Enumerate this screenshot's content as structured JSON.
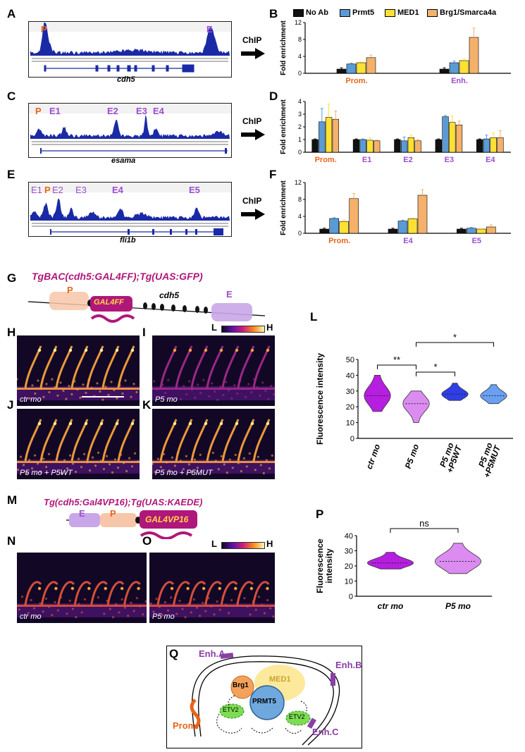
{
  "colors": {
    "no_ab": "#111111",
    "prmt5": "#5b9bd5",
    "med1": "#ffe135",
    "brg1": "#f4b16b",
    "prom_orange": "#e8641b",
    "enh_purple": "#9b4dd1",
    "magenta": "#b0177a",
    "track_blue": "#1a2aa6"
  },
  "panels": {
    "A": "A",
    "B": "B",
    "C": "C",
    "D": "D",
    "E": "E",
    "F": "F",
    "G": "G",
    "H": "H",
    "I": "I",
    "J": "J",
    "K": "K",
    "L": "L",
    "M": "M",
    "N": "N",
    "O": "O",
    "P": "P",
    "Q": "Q"
  },
  "tracks": {
    "A": {
      "gene": "cdh5",
      "labels": [
        {
          "t": "P",
          "kind": "prom"
        },
        {
          "t": "E",
          "kind": "enh"
        }
      ]
    },
    "C": {
      "gene": "esama",
      "labels": [
        {
          "t": "P",
          "kind": "prom"
        },
        {
          "t": "E1",
          "kind": "enh"
        },
        {
          "t": "E2",
          "kind": "enh"
        },
        {
          "t": "E3",
          "kind": "enh"
        },
        {
          "t": "E4",
          "kind": "enh"
        }
      ]
    },
    "E": {
      "gene": "fli1b",
      "labels": [
        {
          "t": "E1",
          "kind": "enh"
        },
        {
          "t": "P",
          "kind": "prom"
        },
        {
          "t": "E2",
          "kind": "enh"
        },
        {
          "t": "E3",
          "kind": "enh"
        },
        {
          "t": "E4",
          "kind": "enh"
        },
        {
          "t": "E5",
          "kind": "enh"
        }
      ]
    }
  },
  "chip_label": "ChIP",
  "legend": [
    "No Ab",
    "Prmt5",
    "MED1",
    "Brg1/Smarca4a"
  ],
  "chart_data": [
    {
      "panel": "B",
      "type": "bar",
      "ylabel": "Fold enrichment",
      "ylim": [
        0,
        12
      ],
      "yticks": [
        0,
        4,
        8,
        12
      ],
      "categories": [
        "Prom.",
        "Enh."
      ],
      "category_colors": [
        "prom",
        "enh"
      ],
      "series": [
        {
          "name": "No Ab",
          "values": [
            1.0,
            1.0
          ],
          "errors": [
            0.3,
            0.3
          ]
        },
        {
          "name": "Prmt5",
          "values": [
            2.2,
            2.5
          ],
          "errors": [
            0.2,
            0.4
          ]
        },
        {
          "name": "MED1",
          "values": [
            2.5,
            3.0
          ],
          "errors": [
            0.2,
            0.4
          ]
        },
        {
          "name": "Brg1/Smarca4a",
          "values": [
            3.7,
            8.5
          ],
          "errors": [
            0.6,
            2.2
          ]
        }
      ]
    },
    {
      "panel": "D",
      "type": "bar",
      "ylabel": "Fold enrichment",
      "ylim": [
        0,
        4
      ],
      "yticks": [
        0,
        1,
        2,
        3,
        4
      ],
      "categories": [
        "Prom.",
        "E1",
        "E2",
        "E3",
        "E4"
      ],
      "category_colors": [
        "prom",
        "enh",
        "enh",
        "enh",
        "enh"
      ],
      "series": [
        {
          "name": "No Ab",
          "values": [
            1.0,
            1.0,
            1.0,
            1.0,
            1.0
          ],
          "errors": [
            0.05,
            0.05,
            0.05,
            0.05,
            0.05
          ]
        },
        {
          "name": "Prmt5",
          "values": [
            2.4,
            1.0,
            0.9,
            2.8,
            1.05
          ],
          "errors": [
            1.05,
            0.05,
            0.3,
            0.1,
            0.3
          ]
        },
        {
          "name": "MED1",
          "values": [
            2.75,
            0.95,
            1.15,
            2.35,
            1.15
          ],
          "errors": [
            1.05,
            0.2,
            0.2,
            0.5,
            0.35
          ]
        },
        {
          "name": "Brg1/Smarca4a",
          "values": [
            2.6,
            0.9,
            0.9,
            2.15,
            1.15
          ],
          "errors": [
            0.65,
            0.05,
            0.1,
            0.3,
            0.55
          ]
        }
      ]
    },
    {
      "panel": "F",
      "type": "bar",
      "ylabel": "Fold enrichment",
      "ylim": [
        0,
        12
      ],
      "yticks": [
        0,
        4,
        8,
        12
      ],
      "categories": [
        "Prom.",
        "E4",
        "E5"
      ],
      "category_colors": [
        "prom",
        "enh",
        "enh"
      ],
      "series": [
        {
          "name": "No Ab",
          "values": [
            1.0,
            1.0,
            1.0
          ],
          "errors": [
            0.2,
            0.2,
            0.2
          ]
        },
        {
          "name": "Prmt5",
          "values": [
            3.5,
            2.9,
            1.2
          ],
          "errors": [
            0.2,
            0.2,
            0.2
          ]
        },
        {
          "name": "MED1",
          "values": [
            2.8,
            3.4,
            1.0
          ],
          "errors": [
            0.3,
            0.2,
            0.1
          ]
        },
        {
          "name": "Brg1/Smarca4a",
          "values": [
            8.2,
            9.0,
            1.5
          ],
          "errors": [
            1.2,
            1.3,
            0.5
          ]
        }
      ]
    },
    {
      "panel": "L",
      "type": "violin",
      "ylabel": "Fluorescence intensity",
      "ylim": [
        0,
        50
      ],
      "yticks": [
        0,
        10,
        20,
        30,
        40,
        50
      ],
      "categories": [
        "ctr mo",
        "P5 mo",
        "P5 mo +P5WT",
        "P5 mo +P5MUT"
      ],
      "ranges": [
        [
          17,
          40
        ],
        [
          10,
          30
        ],
        [
          24,
          35
        ],
        [
          22,
          34
        ]
      ],
      "medians": [
        27,
        22,
        28,
        27
      ],
      "significance": [
        {
          "from": 0,
          "to": 1,
          "label": "**"
        },
        {
          "from": 1,
          "to": 2,
          "label": "*"
        },
        {
          "from": 1,
          "to": 3,
          "label": "*"
        }
      ]
    },
    {
      "panel": "P",
      "type": "violin",
      "ylabel": "Fluorescence intensity",
      "ylim": [
        0,
        40
      ],
      "yticks": [
        0,
        10,
        20,
        30,
        40
      ],
      "categories": [
        "ctr mo",
        "P5 mo"
      ],
      "ranges": [
        [
          18,
          29
        ],
        [
          15,
          35
        ]
      ],
      "medians": [
        22,
        23
      ],
      "significance": [
        {
          "from": 0,
          "to": 1,
          "label": "ns"
        }
      ]
    }
  ],
  "G": {
    "title": "TgBAC(cdh5:GAL4FF);Tg(UAS:GFP)",
    "P": "P",
    "E": "E",
    "gene": "cdh5",
    "driver": "GAL4FF"
  },
  "M": {
    "title": "Tg(cdh5:Gal4VP16);Tg(UAS:KAEDE)",
    "E": "E",
    "P": "P",
    "driver": "GAL4VP16"
  },
  "colorbar": {
    "low": "L",
    "high": "H"
  },
  "micro_labels": {
    "H": "ctr mo",
    "I": "P5 mo",
    "J": "P5 mo + P5WT",
    "K": "P5 mo + P5MUT",
    "N": "ctr mo",
    "O": "P5 mo"
  },
  "Q": {
    "enh_a": "Enh.A",
    "enh_b": "Enh.B",
    "enh_c": "Enh.C",
    "prom": "Prom.",
    "brg1": "Brg1",
    "med1": "MED1",
    "prmt5": "PRMT5",
    "etv2_left": "ETV2",
    "etv2_right": "ETV2"
  }
}
